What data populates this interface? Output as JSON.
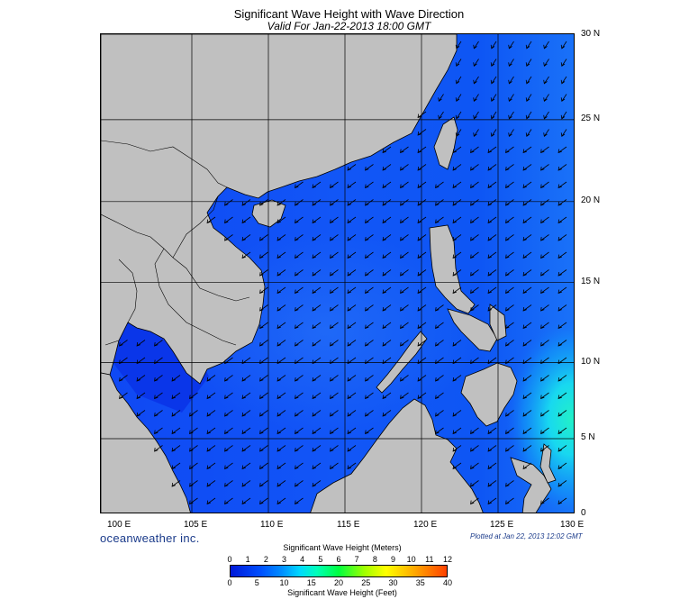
{
  "title": "Significant Wave Height with Wave Direction",
  "subtitle": "Valid For Jan-22-2013 18:00 GMT",
  "map": {
    "lon_range": [
      99,
      130
    ],
    "lat_range": [
      0,
      30
    ],
    "lat_labels": [
      "30 N",
      "25 N",
      "20 N",
      "15 N",
      "10 N",
      "5 N",
      "0"
    ],
    "lon_labels": [
      "100 E",
      "105 E",
      "110 E",
      "115 E",
      "120 E",
      "125 E",
      "130 E"
    ],
    "land_color": "#c0c0c0",
    "arrow_direction": "southwest"
  },
  "brand": "oceanweather inc.",
  "plotted": "Plotted at Jan 22, 2013 12:02 GMT",
  "colorbar": {
    "title_top": "Significant Wave Height (Meters)",
    "title_bottom": "Significant Wave Height (Feet)",
    "meters": [
      "0",
      "1",
      "2",
      "3",
      "4",
      "5",
      "6",
      "7",
      "8",
      "9",
      "10",
      "11",
      "12"
    ],
    "feet": [
      "0",
      "5",
      "10",
      "15",
      "20",
      "25",
      "30",
      "35",
      "40"
    ]
  }
}
